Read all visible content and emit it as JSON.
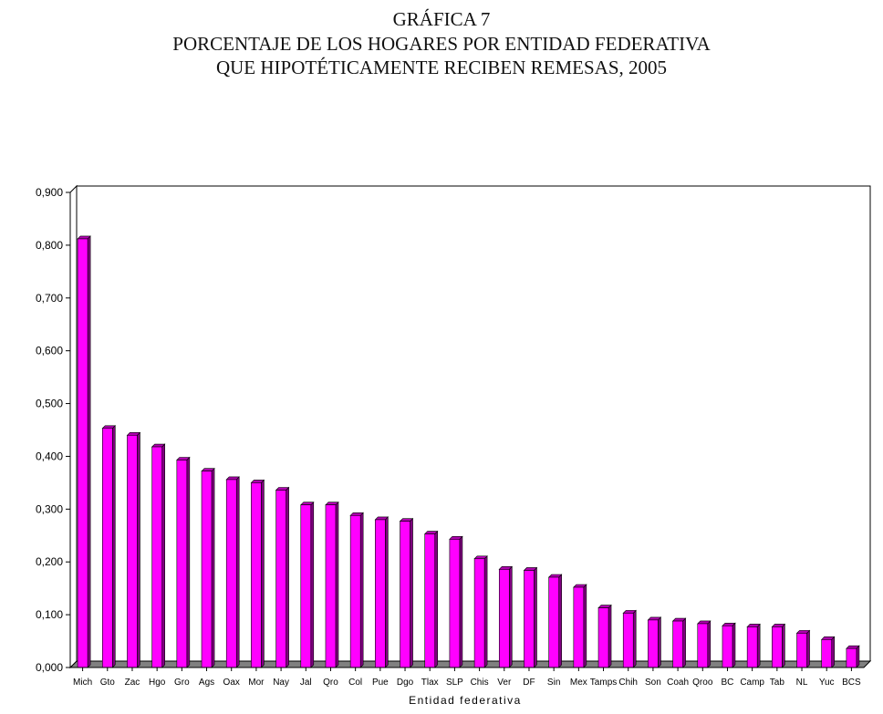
{
  "chart_data": {
    "type": "bar",
    "title_lines": [
      "GRÁFICA 7",
      "PORCENTAJE DE LOS HOGARES POR ENTIDAD FEDERATIVA",
      "QUE HIPOTÉTICAMENTE RECIBEN REMESAS, 2005"
    ],
    "xlabel": "Entidad federativa",
    "ylabel": "",
    "ylim": [
      0,
      0.9
    ],
    "yticks": [
      "0,000",
      "0,100",
      "0,200",
      "0,300",
      "0,400",
      "0,500",
      "0,600",
      "0,700",
      "0,800",
      "0,900"
    ],
    "categories": [
      "Mich",
      "Gto",
      "Zac",
      "Hgo",
      "Gro",
      "Ags",
      "Oax",
      "Mor",
      "Nay",
      "Jal",
      "Qro",
      "Col",
      "Pue",
      "Dgo",
      "Tlax",
      "SLP",
      "Chis",
      "Ver",
      "DF",
      "Sin",
      "Mex",
      "Tamps",
      "Chih",
      "Son",
      "Coah",
      "Qroo",
      "BC",
      "Camp",
      "Tab",
      "NL",
      "Yuc",
      "BCS"
    ],
    "values": [
      0.812,
      0.453,
      0.44,
      0.418,
      0.393,
      0.372,
      0.356,
      0.35,
      0.336,
      0.308,
      0.308,
      0.288,
      0.28,
      0.277,
      0.253,
      0.243,
      0.206,
      0.186,
      0.184,
      0.171,
      0.152,
      0.113,
      0.103,
      0.09,
      0.088,
      0.083,
      0.079,
      0.077,
      0.077,
      0.065,
      0.053,
      0.036
    ],
    "grid": true,
    "bar_color": "#ff00ff",
    "bar_shadow_color": "#800080",
    "floor_color": "#808080"
  }
}
